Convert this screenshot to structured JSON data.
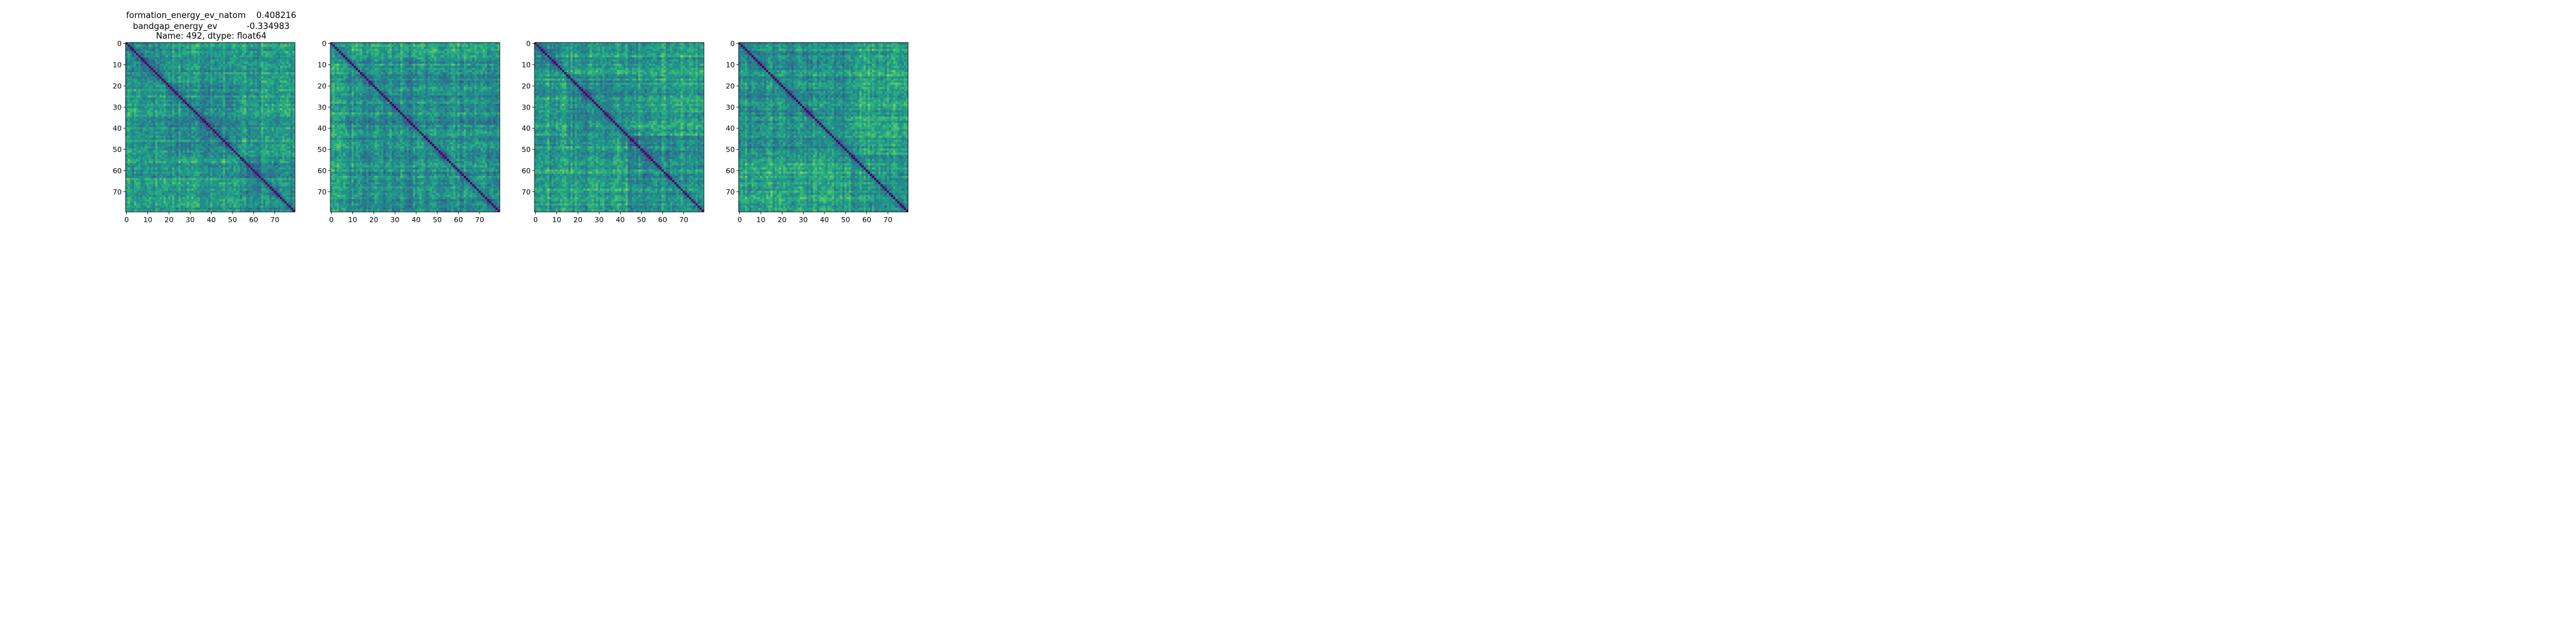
{
  "figure": {
    "title_lines": [
      "formation_energy_ev_natom    0.408216",
      "bandgap_energy_ev           -0.334983",
      "Name: 492, dtype: float64"
    ]
  },
  "colormap": {
    "name": "viridis",
    "stops": [
      "#440154",
      "#482878",
      "#3e4989",
      "#31688e",
      "#26828e",
      "#1f9e89",
      "#35b779",
      "#6ece58",
      "#b5de2b",
      "#fde725"
    ]
  },
  "chart_data": [
    {
      "type": "heatmap",
      "title": "formation_energy_ev_natom    0.408216\nbandgap_energy_ev           -0.334983\nName: 492, dtype: float64",
      "size": 80,
      "xlim": [
        -0.5,
        79.5
      ],
      "ylim": [
        79.5,
        -0.5
      ],
      "xticks": [
        0,
        10,
        20,
        30,
        40,
        50,
        60,
        70
      ],
      "yticks": [
        0,
        10,
        20,
        30,
        40,
        50,
        60,
        70
      ],
      "diagonal_value": 0,
      "block_boundaries": [
        19,
        54
      ],
      "seed": 17,
      "description": "80x80 symmetric pairwise distance matrix, zero diagonal"
    },
    {
      "type": "heatmap",
      "title": "",
      "size": 80,
      "xlim": [
        -0.5,
        79.5
      ],
      "ylim": [
        79.5,
        -0.5
      ],
      "xticks": [
        0,
        10,
        20,
        30,
        40,
        50,
        60,
        70
      ],
      "yticks": [
        0,
        10,
        20,
        30,
        40,
        50,
        60,
        70
      ],
      "diagonal_value": 0,
      "block_boundaries": [
        8
      ],
      "seed": 29,
      "description": "80x80 symmetric pairwise distance matrix, zero diagonal"
    },
    {
      "type": "heatmap",
      "title": "",
      "size": 80,
      "xlim": [
        -0.5,
        79.5
      ],
      "ylim": [
        79.5,
        -0.5
      ],
      "xticks": [
        0,
        10,
        20,
        30,
        40,
        50,
        60,
        70
      ],
      "yticks": [
        0,
        10,
        20,
        30,
        40,
        50,
        60,
        70
      ],
      "diagonal_value": 0,
      "block_boundaries": [
        15,
        44
      ],
      "seed": 43,
      "description": "80x80 symmetric pairwise distance matrix, zero diagonal"
    },
    {
      "type": "heatmap",
      "title": "",
      "size": 80,
      "xlim": [
        -0.5,
        79.5
      ],
      "ylim": [
        79.5,
        -0.5
      ],
      "xticks": [
        0,
        10,
        20,
        30,
        40,
        50,
        60,
        70
      ],
      "yticks": [
        0,
        10,
        20,
        30,
        40,
        50,
        60,
        70
      ],
      "diagonal_value": 0,
      "block_boundaries": [
        53
      ],
      "seed": 61,
      "description": "80x80 symmetric pairwise distance matrix, zero diagonal"
    }
  ]
}
